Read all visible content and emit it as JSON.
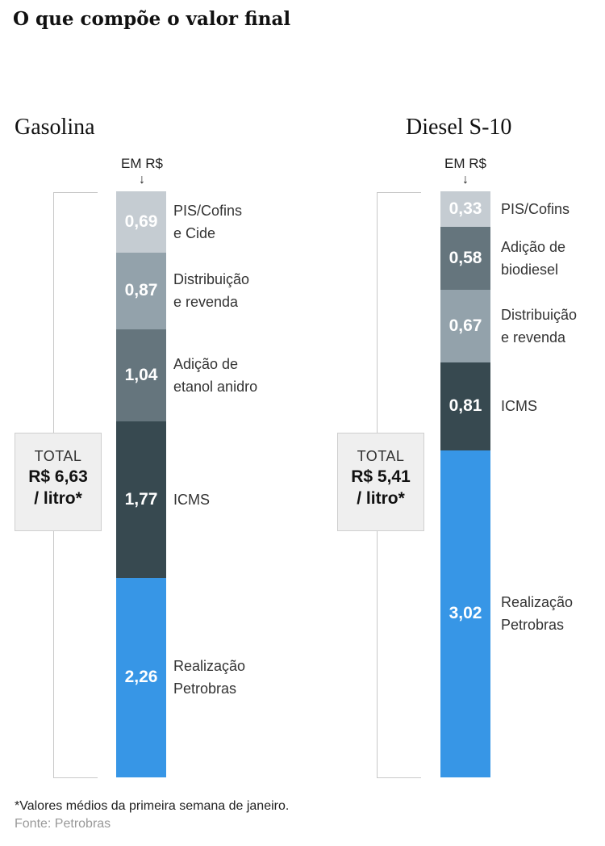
{
  "title": "O que compõe o valor final",
  "footnote": "*Valores médios da primeira semana de janeiro.",
  "source": "Fonte: Petrobras",
  "chart_data": [
    {
      "type": "stacked-bar",
      "title": "Gasolina",
      "unit": "EM R$",
      "total_label": "TOTAL",
      "total_value_line1": "R$ 6,63",
      "total_value_line2": "/ litro*",
      "total": 6.63,
      "segments": [
        {
          "label": "PIS/Cofins\ne Cide",
          "value": 0.69,
          "value_text": "0,69",
          "color": "#c5ccd2"
        },
        {
          "label": "Distribuição\ne revenda",
          "value": 0.87,
          "value_text": "0,87",
          "color": "#93a2ab"
        },
        {
          "label": "Adição de\netanol anidro",
          "value": 1.04,
          "value_text": "1,04",
          "color": "#65757d"
        },
        {
          "label": "ICMS",
          "value": 1.77,
          "value_text": "1,77",
          "color": "#374950"
        },
        {
          "label": "Realização\nPetrobras",
          "value": 2.26,
          "value_text": "2,26",
          "color": "#3796e6"
        }
      ]
    },
    {
      "type": "stacked-bar",
      "title": "Diesel S-10",
      "unit": "EM R$",
      "total_label": "TOTAL",
      "total_value_line1": "R$ 5,41",
      "total_value_line2": "/ litro*",
      "total": 5.41,
      "segments": [
        {
          "label": "PIS/Cofins",
          "value": 0.33,
          "value_text": "0,33",
          "color": "#c5ccd2"
        },
        {
          "label": "Adição de\nbiodiesel",
          "value": 0.58,
          "value_text": "0,58",
          "color": "#65757d"
        },
        {
          "label": "Distribuição\ne revenda",
          "value": 0.67,
          "value_text": "0,67",
          "color": "#93a2ab"
        },
        {
          "label": "ICMS",
          "value": 0.81,
          "value_text": "0,81",
          "color": "#374950"
        },
        {
          "label": "Realização\nPetrobras",
          "value": 3.02,
          "value_text": "3,02",
          "color": "#3796e6"
        }
      ]
    }
  ]
}
